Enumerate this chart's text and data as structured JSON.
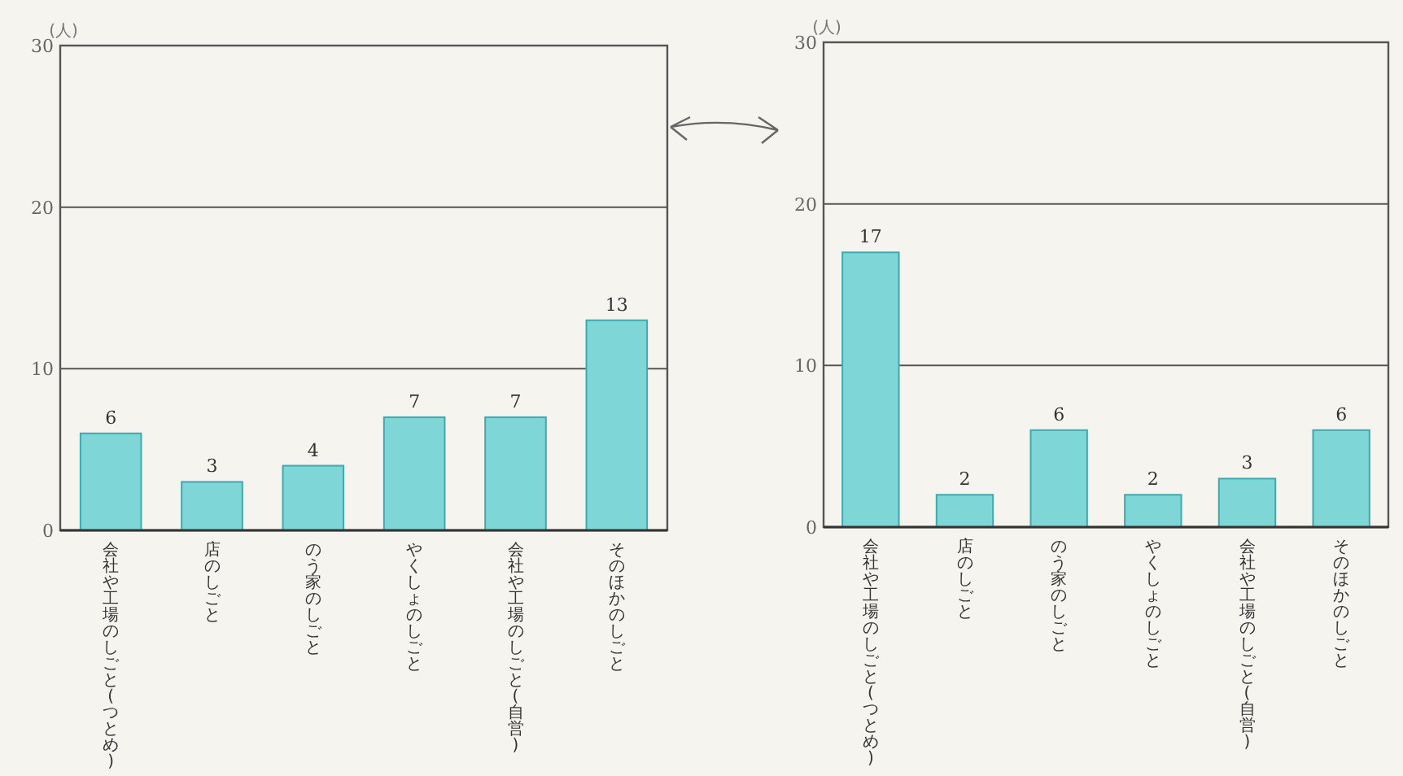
{
  "chart_data": [
    {
      "type": "bar",
      "ylabel": "(人)",
      "categories": [
        "会社や工場のしごと(つとめ)",
        "店のしごと",
        "のう家のしごと",
        "やくしょのしごと",
        "会社や工場のしごと(自営)",
        "そのほかのしごと"
      ],
      "values": [
        6,
        3,
        4,
        7,
        7,
        13
      ],
      "color": "#7fd6d6",
      "ylim": [
        0,
        30
      ],
      "yticks": [
        0,
        10,
        20,
        30
      ],
      "grid": "y",
      "data_labels": true
    },
    {
      "type": "bar",
      "ylabel": "(人)",
      "categories": [
        "会社や工場のしごと(つとめ)",
        "店のしごと",
        "のう家のしごと",
        "やくしょのしごと",
        "会社や工場のしごと(自営)",
        "そのほかのしごと"
      ],
      "values": [
        17,
        2,
        6,
        2,
        3,
        6
      ],
      "color": "#7fd6d6",
      "ylim": [
        0,
        30
      ],
      "yticks": [
        0,
        10,
        20,
        30
      ],
      "grid": "y",
      "data_labels": true
    }
  ]
}
